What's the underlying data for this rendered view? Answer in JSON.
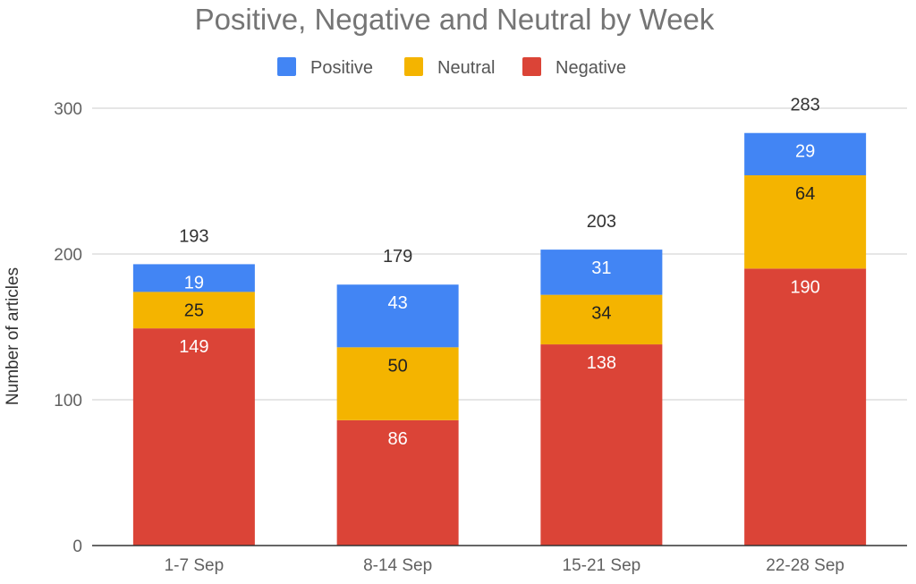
{
  "chart_data": {
    "type": "bar",
    "stacked": true,
    "title": "Positive, Negative and Neutral by Week",
    "xlabel": "",
    "ylabel": "Number of articles",
    "ylim": [
      0,
      300
    ],
    "yticks": [
      0,
      100,
      200,
      300
    ],
    "categories": [
      "1-7 Sep",
      "8-14 Sep",
      "15-21 Sep",
      "22-28 Sep"
    ],
    "series": [
      {
        "name": "Negative",
        "color": "#db4437",
        "label_color": "#ffffff",
        "values": [
          149,
          86,
          138,
          190
        ]
      },
      {
        "name": "Neutral",
        "color": "#f4b400",
        "label_color": "#222222",
        "values": [
          25,
          50,
          34,
          64
        ]
      },
      {
        "name": "Positive",
        "color": "#4285f4",
        "label_color": "#ffffff",
        "values": [
          19,
          43,
          31,
          29
        ]
      }
    ],
    "totals": [
      193,
      179,
      203,
      283
    ],
    "legend": {
      "position": "top",
      "entries": [
        {
          "name": "Positive",
          "color": "#4285f4"
        },
        {
          "name": "Neutral",
          "color": "#f4b400"
        },
        {
          "name": "Negative",
          "color": "#db4437"
        }
      ]
    },
    "grid": true
  }
}
